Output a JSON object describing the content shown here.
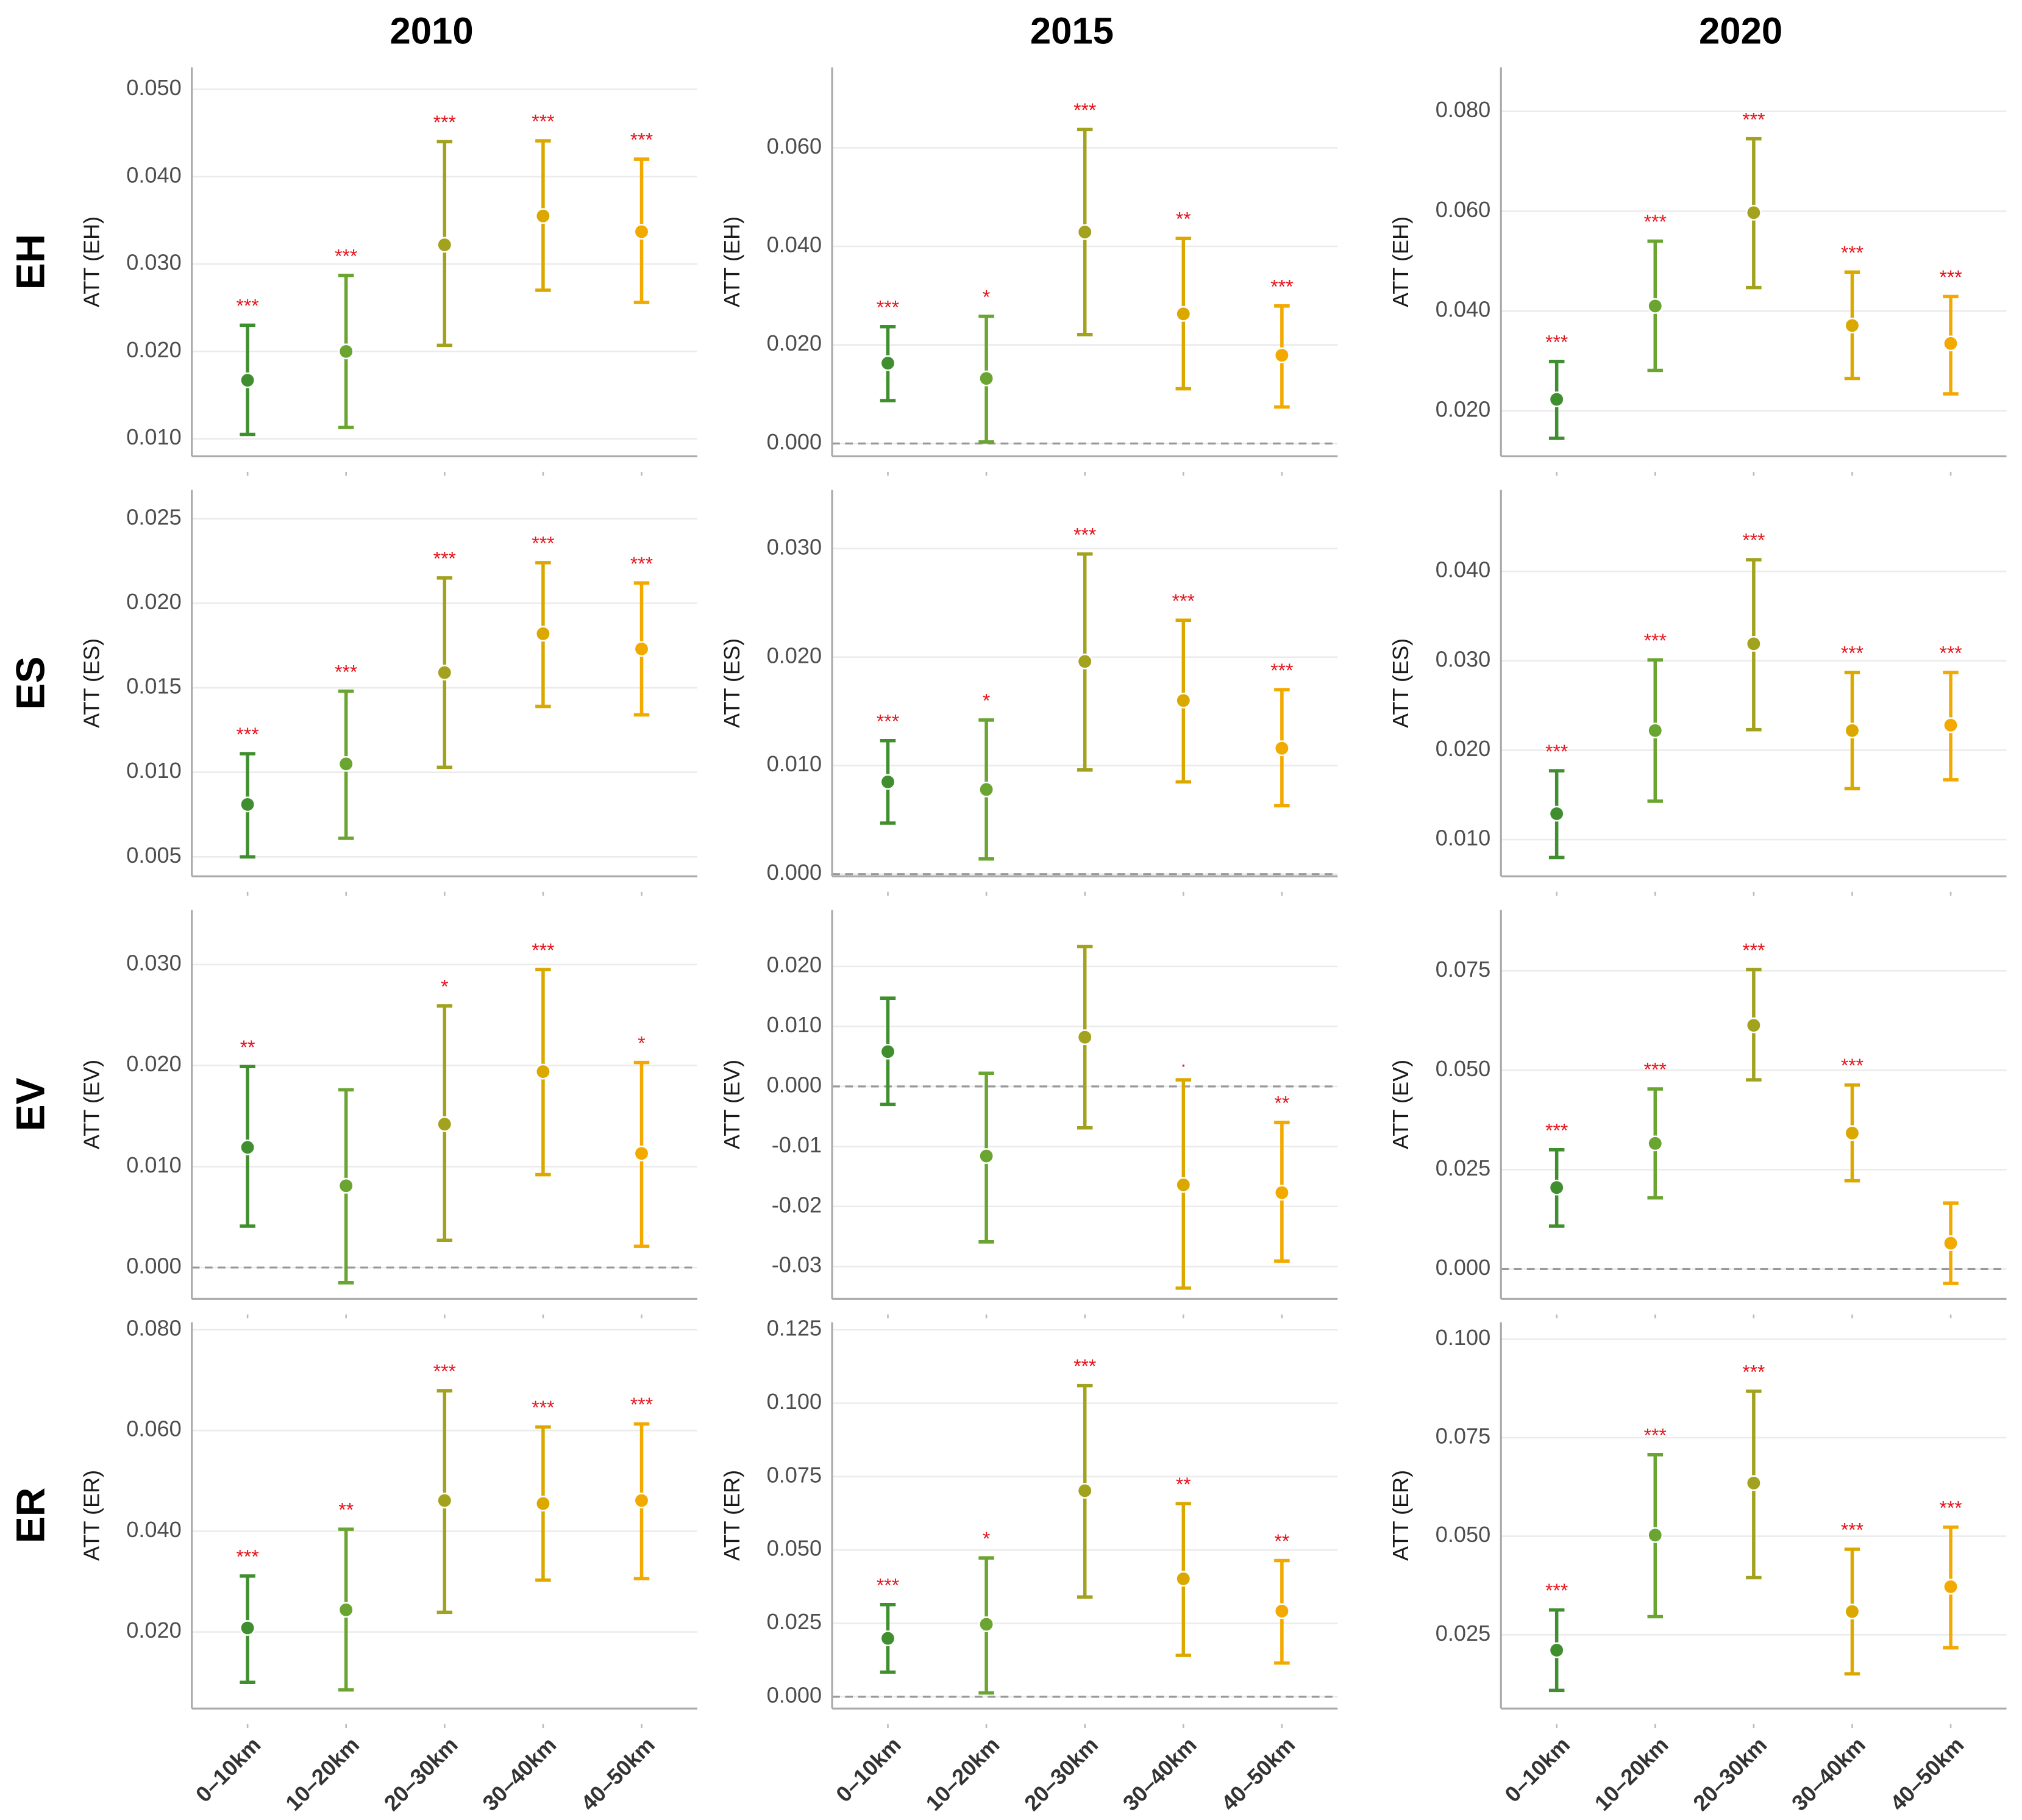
{
  "column_titles": [
    "2010",
    "2015",
    "2020"
  ],
  "row_labels": [
    "EH",
    "ES",
    "EV",
    "ER"
  ],
  "categories": [
    "0–10km",
    "10–20km",
    "20–30km",
    "30–40km",
    "40–50km"
  ],
  "colors": [
    "#3f8f2f",
    "#6aa532",
    "#a3a21f",
    "#dba800",
    "#f2a900"
  ],
  "chart_data": [
    {
      "type": "errorbar",
      "ylabel": "ATT (EH)",
      "grid": true,
      "zero_line": false,
      "ylim": [
        0.008,
        0.0525
      ],
      "yticks": [
        {
          "value": 0.01,
          "label": "0.010"
        },
        {
          "value": 0.02,
          "label": "0.020"
        },
        {
          "value": 0.03,
          "label": "0.030"
        },
        {
          "value": 0.04,
          "label": "0.040"
        },
        {
          "value": 0.05,
          "label": "0.050"
        }
      ],
      "values": [
        0.0167,
        0.02,
        0.0322,
        0.0355,
        0.0337
      ],
      "lower": [
        0.0105,
        0.0113,
        0.0207,
        0.027,
        0.0256
      ],
      "upper": [
        0.023,
        0.0287,
        0.044,
        0.0441,
        0.042
      ],
      "annotations": [
        "***",
        "***",
        "***",
        "***",
        "***"
      ]
    },
    {
      "type": "errorbar",
      "ylabel": "ATT (EH)",
      "grid": true,
      "zero_line": true,
      "ylim": [
        -0.0026,
        0.0763
      ],
      "yticks": [
        {
          "value": 0,
          "label": "0.000"
        },
        {
          "value": 0.02,
          "label": "0.020"
        },
        {
          "value": 0.04,
          "label": "0.040"
        },
        {
          "value": 0.06,
          "label": "0.060"
        }
      ],
      "values": [
        0.0163,
        0.0132,
        0.0429,
        0.0263,
        0.0179
      ],
      "lower": [
        0.0087,
        0.0003,
        0.0221,
        0.0111,
        0.0074
      ],
      "upper": [
        0.0237,
        0.0258,
        0.0637,
        0.0416,
        0.0279
      ],
      "annotations": [
        "***",
        "*",
        "***",
        "**",
        "***"
      ]
    },
    {
      "type": "errorbar",
      "ylabel": "ATT (EH)",
      "grid": true,
      "zero_line": false,
      "ylim": [
        0.0109,
        0.0888
      ],
      "yticks": [
        {
          "value": 0.02,
          "label": "0.020"
        },
        {
          "value": 0.04,
          "label": "0.040"
        },
        {
          "value": 0.06,
          "label": "0.060"
        },
        {
          "value": 0.08,
          "label": "0.080"
        }
      ],
      "values": [
        0.0223,
        0.041,
        0.0597,
        0.0371,
        0.0335
      ],
      "lower": [
        0.0145,
        0.0281,
        0.0447,
        0.0265,
        0.0234
      ],
      "upper": [
        0.0299,
        0.054,
        0.0745,
        0.0478,
        0.0429
      ],
      "annotations": [
        "***",
        "***",
        "***",
        "***",
        "***"
      ]
    },
    {
      "type": "errorbar",
      "ylabel": "ATT (ES)",
      "grid": true,
      "zero_line": false,
      "ylim": [
        0.00385,
        0.0267
      ],
      "yticks": [
        {
          "value": 0.005,
          "label": "0.005"
        },
        {
          "value": 0.01,
          "label": "0.010"
        },
        {
          "value": 0.015,
          "label": "0.015"
        },
        {
          "value": 0.02,
          "label": "0.020"
        },
        {
          "value": 0.025,
          "label": "0.025"
        }
      ],
      "values": [
        0.0081,
        0.0105,
        0.0159,
        0.0182,
        0.0173
      ],
      "lower": [
        0.005,
        0.0061,
        0.0103,
        0.0139,
        0.0134
      ],
      "upper": [
        0.0111,
        0.0148,
        0.0215,
        0.0224,
        0.0212
      ],
      "annotations": [
        "***",
        "***",
        "***",
        "***",
        "***"
      ]
    },
    {
      "type": "errorbar",
      "ylabel": "ATT (ES)",
      "grid": true,
      "zero_line": true,
      "ylim": [
        -0.0002,
        0.0354
      ],
      "yticks": [
        {
          "value": 0,
          "label": "0.000"
        },
        {
          "value": 0.01,
          "label": "0.010"
        },
        {
          "value": 0.02,
          "label": "0.020"
        },
        {
          "value": 0.03,
          "label": "0.030"
        }
      ],
      "values": [
        0.0085,
        0.0078,
        0.0196,
        0.016,
        0.0116
      ],
      "lower": [
        0.0047,
        0.0014,
        0.0096,
        0.0085,
        0.0063
      ],
      "upper": [
        0.0123,
        0.0142,
        0.0295,
        0.0234,
        0.017
      ],
      "annotations": [
        "***",
        "*",
        "***",
        "***",
        "***"
      ]
    },
    {
      "type": "errorbar",
      "ylabel": "ATT (ES)",
      "grid": true,
      "zero_line": false,
      "ylim": [
        0.0059,
        0.0491
      ],
      "yticks": [
        {
          "value": 0.01,
          "label": "0.010"
        },
        {
          "value": 0.02,
          "label": "0.020"
        },
        {
          "value": 0.03,
          "label": "0.030"
        },
        {
          "value": 0.04,
          "label": "0.040"
        }
      ],
      "values": [
        0.0129,
        0.0222,
        0.0319,
        0.0222,
        0.0228
      ],
      "lower": [
        0.008,
        0.0143,
        0.0223,
        0.0157,
        0.0167
      ],
      "upper": [
        0.0177,
        0.0301,
        0.0413,
        0.0287,
        0.0287
      ],
      "annotations": [
        "***",
        "***",
        "***",
        "***",
        "***"
      ]
    },
    {
      "type": "errorbar",
      "ylabel": "ATT (EV)",
      "grid": true,
      "zero_line": true,
      "ylim": [
        -0.0031,
        0.0354
      ],
      "yticks": [
        {
          "value": 0,
          "label": "0.000"
        },
        {
          "value": 0.01,
          "label": "0.010"
        },
        {
          "value": 0.02,
          "label": "0.020"
        },
        {
          "value": 0.03,
          "label": "0.030"
        }
      ],
      "values": [
        0.0119,
        0.0081,
        0.0142,
        0.0194,
        0.0113
      ],
      "lower": [
        0.0041,
        -0.0015,
        0.0027,
        0.0092,
        0.0021
      ],
      "upper": [
        0.0199,
        0.0176,
        0.0259,
        0.0295,
        0.0203
      ],
      "annotations": [
        "**",
        null,
        "*",
        "***",
        "*"
      ]
    },
    {
      "type": "errorbar",
      "ylabel": "ATT (EV)",
      "grid": true,
      "zero_line": true,
      "ylim": [
        -0.0354,
        0.0294
      ],
      "yticks": [
        -0.03,
        -0.02,
        -0.01,
        {
          "value": 0,
          "label": "0.000"
        },
        {
          "value": 0.01,
          "label": "0.010"
        },
        {
          "value": 0.02,
          "label": "0.020"
        }
      ],
      "values": [
        0.0058,
        -0.0116,
        0.0082,
        -0.0164,
        -0.0177
      ],
      "lower": [
        -0.003,
        -0.0259,
        -0.0069,
        -0.0336,
        -0.0291
      ],
      "upper": [
        0.0147,
        0.0022,
        0.0233,
        0.0011,
        -0.006
      ],
      "annotations": [
        null,
        null,
        null,
        ".",
        "**"
      ]
    },
    {
      "type": "errorbar",
      "ylabel": "ATT (EV)",
      "grid": true,
      "zero_line": true,
      "ylim": [
        -0.0075,
        0.0903
      ],
      "yticks": [
        {
          "value": 0,
          "label": "0.000"
        },
        {
          "value": 0.025,
          "label": "0.025"
        },
        {
          "value": 0.05,
          "label": "0.050"
        },
        {
          "value": 0.075,
          "label": "0.075"
        }
      ],
      "values": [
        0.0205,
        0.0316,
        0.0613,
        0.0342,
        0.0065
      ],
      "lower": [
        0.0108,
        0.0179,
        0.0476,
        0.0222,
        -0.0036
      ],
      "upper": [
        0.03,
        0.0453,
        0.0753,
        0.0463,
        0.0166
      ],
      "annotations": [
        "***",
        "***",
        "***",
        "***",
        null
      ]
    },
    {
      "type": "errorbar",
      "ylabel": "ATT (ER)",
      "grid": true,
      "zero_line": false,
      "ylim": [
        0.0048,
        0.0815
      ],
      "yticks": [
        {
          "value": 0.02,
          "label": "0.020"
        },
        {
          "value": 0.04,
          "label": "0.040"
        },
        {
          "value": 0.06,
          "label": "0.060"
        },
        {
          "value": 0.08,
          "label": "0.080"
        }
      ],
      "values": [
        0.0208,
        0.0244,
        0.0461,
        0.0455,
        0.0461
      ],
      "lower": [
        0.01,
        0.0085,
        0.0239,
        0.0303,
        0.0306
      ],
      "upper": [
        0.0311,
        0.0404,
        0.0679,
        0.0607,
        0.0613
      ],
      "annotations": [
        "***",
        "**",
        "***",
        "***",
        "***"
      ]
    },
    {
      "type": "errorbar",
      "ylabel": "ATT (ER)",
      "grid": true,
      "zero_line": true,
      "ylim": [
        -0.004,
        0.1276
      ],
      "yticks": [
        {
          "value": 0,
          "label": "0.000"
        },
        {
          "value": 0.025,
          "label": "0.025"
        },
        {
          "value": 0.05,
          "label": "0.050"
        },
        {
          "value": 0.075,
          "label": "0.075"
        },
        {
          "value": 0.1,
          "label": "0.100"
        },
        {
          "value": 0.125,
          "label": "0.125"
        }
      ],
      "values": [
        0.0199,
        0.0247,
        0.0702,
        0.0402,
        0.0292
      ],
      "lower": [
        0.0084,
        0.0013,
        0.034,
        0.0141,
        0.0115
      ],
      "upper": [
        0.0314,
        0.0473,
        0.106,
        0.0658,
        0.0464
      ],
      "annotations": [
        "***",
        "*",
        "***",
        "**",
        "**"
      ]
    },
    {
      "type": "errorbar",
      "ylabel": "ATT (ER)",
      "grid": true,
      "zero_line": false,
      "ylim": [
        0.0063,
        0.1043
      ],
      "yticks": [
        {
          "value": 0.025,
          "label": "0.025"
        },
        {
          "value": 0.05,
          "label": "0.050"
        },
        {
          "value": 0.075,
          "label": "0.075"
        },
        {
          "value": 0.1,
          "label": "0.100"
        }
      ],
      "values": [
        0.0211,
        0.0503,
        0.0635,
        0.0309,
        0.0372
      ],
      "lower": [
        0.0109,
        0.0296,
        0.0395,
        0.0151,
        0.0217
      ],
      "upper": [
        0.0313,
        0.0707,
        0.0868,
        0.0467,
        0.0523
      ],
      "annotations": [
        "***",
        "***",
        "***",
        "***",
        "***"
      ]
    }
  ]
}
